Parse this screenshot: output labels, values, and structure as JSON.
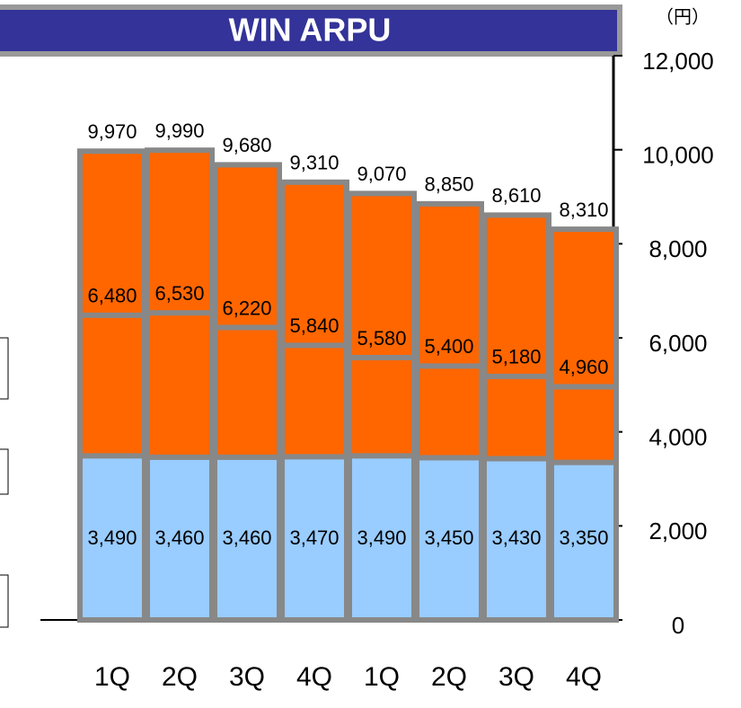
{
  "chart_data": {
    "type": "bar",
    "title": "WIN ARPU",
    "unit": "（円）",
    "categories": [
      "1Q",
      "2Q",
      "3Q",
      "4Q",
      "1Q",
      "2Q",
      "3Q",
      "4Q"
    ],
    "series": [
      {
        "color": "#ff6600",
        "values": [
          9970,
          9990,
          9680,
          9310,
          9070,
          8850,
          8610,
          8310
        ]
      },
      {
        "color": "#ff6600",
        "values": [
          6480,
          6530,
          6220,
          5840,
          5580,
          5400,
          5180,
          4960
        ]
      },
      {
        "color": "#99ccff",
        "values": [
          3490,
          3460,
          3460,
          3470,
          3490,
          3450,
          3430,
          3350
        ]
      }
    ],
    "ylim": [
      0,
      12000
    ],
    "yticks": [
      0,
      {
        "value": 2000,
        "label": "2,000"
      },
      {
        "value": 4000,
        "label": "4,000"
      },
      {
        "value": 6000,
        "label": "6,000"
      },
      {
        "value": 8000,
        "label": "8,000"
      },
      {
        "value": 10000,
        "label": "10,000"
      },
      {
        "value": 12000,
        "label": "12,000"
      }
    ]
  }
}
